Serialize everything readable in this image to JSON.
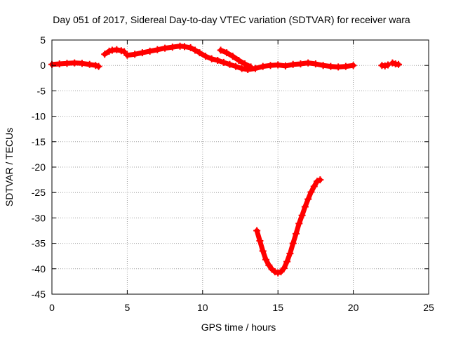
{
  "chart_data": {
    "type": "scatter",
    "title": "Day 051 of 2017, Sidereal Day-to-day VTEC variation (SDTVAR) for receiver wara",
    "xlabel": "GPS time / hours",
    "ylabel": "SDTVAR / TECUs",
    "xlim": [
      0,
      25
    ],
    "ylim": [
      -45,
      5
    ],
    "xticks": [
      0,
      5,
      10,
      15,
      20,
      25
    ],
    "yticks": [
      5,
      0,
      -5,
      -10,
      -15,
      -20,
      -25,
      -30,
      -35,
      -40,
      -45
    ],
    "grid": true,
    "series_color": "#ff0000",
    "grid_color": "#a0a0a0",
    "series": [
      {
        "name": "SDTVAR",
        "segments": [
          {
            "x": [
              0.0,
              0.5,
              1.0,
              1.5,
              2.0,
              2.5,
              2.9,
              3.1
            ],
            "y": [
              0.2,
              0.3,
              0.4,
              0.5,
              0.4,
              0.2,
              0.0,
              -0.2
            ]
          },
          {
            "x": [
              3.5,
              3.8,
              4.0,
              4.3,
              4.6,
              4.8
            ],
            "y": [
              2.2,
              2.8,
              3.0,
              3.1,
              2.9,
              2.7
            ]
          },
          {
            "x": [
              5.0,
              5.5,
              6.0,
              6.5,
              7.0,
              7.5,
              8.0,
              8.5,
              8.8,
              9.2,
              9.5,
              9.8,
              10.2,
              10.6,
              11.0,
              11.4,
              11.8,
              12.2,
              12.6,
              13.0,
              13.5,
              14.0,
              14.5,
              15.0,
              15.5,
              16.0,
              16.5,
              17.0,
              17.5,
              18.0,
              18.5,
              19.0,
              19.5,
              20.0
            ],
            "y": [
              2.0,
              2.2,
              2.5,
              2.8,
              3.1,
              3.4,
              3.6,
              3.8,
              3.7,
              3.5,
              3.0,
              2.5,
              1.8,
              1.3,
              1.0,
              0.6,
              0.2,
              -0.2,
              -0.6,
              -0.8,
              -0.6,
              -0.2,
              0.0,
              0.1,
              -0.1,
              0.2,
              0.3,
              0.5,
              0.3,
              0.0,
              -0.2,
              -0.3,
              -0.2,
              0.0
            ]
          },
          {
            "x": [
              11.2,
              11.6,
              12.0,
              12.4,
              12.8,
              13.2
            ],
            "y": [
              3.0,
              2.5,
              1.8,
              1.0,
              0.3,
              -0.3
            ]
          },
          {
            "x": [
              21.9,
              22.1,
              22.3
            ],
            "y": [
              0.0,
              -0.1,
              0.1
            ]
          },
          {
            "x": [
              22.6,
              22.8,
              23.0
            ],
            "y": [
              0.5,
              0.3,
              0.2
            ]
          },
          {
            "x": [
              13.6,
              13.8,
              14.0,
              14.2,
              14.4,
              14.6,
              14.8,
              15.0,
              15.2,
              15.4,
              15.6,
              15.8,
              16.0,
              16.2,
              16.4,
              16.6,
              16.8,
              17.0,
              17.2,
              17.4,
              17.6,
              17.8
            ],
            "y": [
              -32.5,
              -34.5,
              -36.5,
              -38.2,
              -39.3,
              -40.1,
              -40.6,
              -40.8,
              -40.6,
              -39.9,
              -38.6,
              -37.0,
              -35.0,
              -33.1,
              -31.1,
              -29.5,
              -27.8,
              -26.3,
              -24.9,
              -23.8,
              -22.8,
              -22.5
            ]
          }
        ]
      }
    ]
  }
}
